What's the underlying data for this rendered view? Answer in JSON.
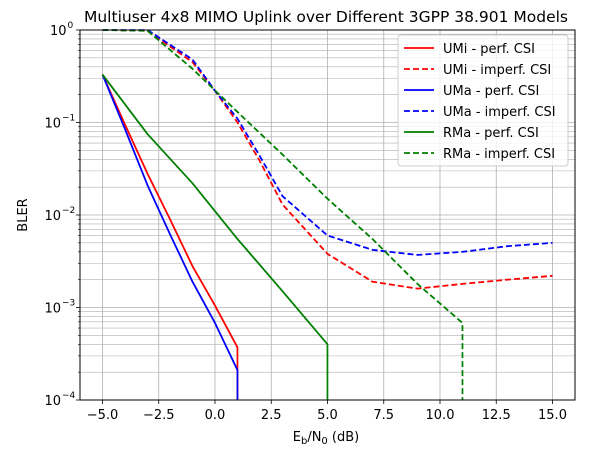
{
  "chart_data": {
    "type": "line",
    "title": "Multiuser 4x8 MIMO Uplink over Different 3GPP 38.901 Models",
    "xlabel": {
      "main": "E",
      "sub1": "b",
      "slash": "/N",
      "sub2": "0",
      "unit": " (dB)"
    },
    "ylabel": "BLER",
    "x_scale": "linear",
    "y_scale": "log",
    "xlim": [
      -6,
      16
    ],
    "ylim": [
      0.0001,
      1
    ],
    "xticks": [
      -5.0,
      -2.5,
      0.0,
      2.5,
      5.0,
      7.5,
      10.0,
      12.5,
      15.0
    ],
    "xtick_labels": [
      "−5.0",
      "−2.5",
      "0.0",
      "2.5",
      "5.0",
      "7.5",
      "10.0",
      "12.5",
      "15.0"
    ],
    "yticks": [
      {
        "value": 0.0001,
        "base": "10",
        "exp": "−4"
      },
      {
        "value": 0.001,
        "base": "10",
        "exp": "−3"
      },
      {
        "value": 0.01,
        "base": "10",
        "exp": "−2"
      },
      {
        "value": 0.1,
        "base": "10",
        "exp": "−1"
      },
      {
        "value": 1,
        "base": "10",
        "exp": "0"
      }
    ],
    "grid": true,
    "grid_minor_y": true,
    "legend_position": "top-right",
    "series": [
      {
        "name": "UMi - perf. CSI",
        "color": "#ff0000",
        "linestyle": "solid",
        "x": [
          -5,
          -4,
          -3,
          -2,
          -1,
          0,
          1,
          1
        ],
        "y": [
          0.33,
          0.095,
          0.028,
          0.009,
          0.0028,
          0.00105,
          0.00037,
          0.0001
        ]
      },
      {
        "name": "UMi - imperf. CSI",
        "color": "#ff0000",
        "linestyle": "dashed",
        "x": [
          -5,
          -3,
          -1,
          0,
          1,
          2,
          3,
          5,
          7,
          9,
          11,
          13,
          15
        ],
        "y": [
          1.0,
          0.98,
          0.45,
          0.22,
          0.1,
          0.038,
          0.013,
          0.0038,
          0.0019,
          0.0016,
          0.0018,
          0.002,
          0.0022
        ]
      },
      {
        "name": "UMa - perf. CSI",
        "color": "#0000ff",
        "linestyle": "solid",
        "x": [
          -5,
          -4,
          -3,
          -2,
          -1,
          0,
          1,
          1
        ],
        "y": [
          0.33,
          0.085,
          0.021,
          0.0062,
          0.0019,
          0.00068,
          0.00021,
          0.0001
        ]
      },
      {
        "name": "UMa - imperf. CSI",
        "color": "#0000ff",
        "linestyle": "dashed",
        "x": [
          -5,
          -3,
          -1,
          0,
          1,
          2,
          3,
          5,
          7,
          9,
          11,
          13,
          15
        ],
        "y": [
          1.0,
          1.0,
          0.48,
          0.22,
          0.11,
          0.043,
          0.016,
          0.006,
          0.0042,
          0.0037,
          0.004,
          0.0046,
          0.005
        ]
      },
      {
        "name": "RMa - perf. CSI",
        "color": "#008000",
        "linestyle": "solid",
        "x": [
          -5,
          -3,
          -1,
          1,
          3,
          5,
          5
        ],
        "y": [
          0.33,
          0.075,
          0.022,
          0.0055,
          0.0015,
          0.0004,
          0.0001
        ]
      },
      {
        "name": "RMa - imperf. CSI",
        "color": "#008000",
        "linestyle": "dashed",
        "x": [
          -5,
          -3,
          -1,
          1,
          3,
          5,
          7,
          9,
          11,
          11
        ],
        "y": [
          1.0,
          0.98,
          0.38,
          0.13,
          0.045,
          0.015,
          0.0055,
          0.0018,
          0.00068,
          0.0001
        ]
      }
    ]
  }
}
